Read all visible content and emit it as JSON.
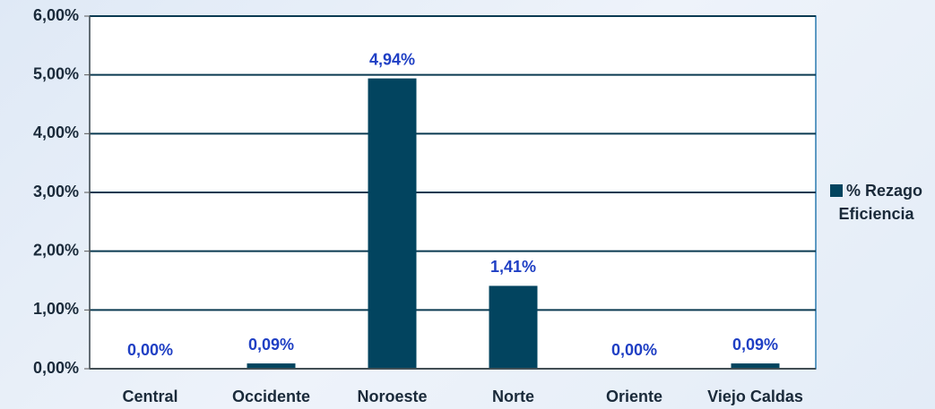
{
  "chart_data": {
    "type": "bar",
    "categories": [
      "Central",
      "Occidente",
      "Noroeste",
      "Norte",
      "Oriente",
      "Viejo Caldas"
    ],
    "series": [
      {
        "name": "% Rezago Eficiencia",
        "color": "#02445f",
        "values": [
          0,
          0.09,
          4.94,
          1.41,
          0,
          0.09
        ],
        "value_labels": [
          "0,00%",
          "0,09%",
          "4,94%",
          "1,41%",
          "0,00%",
          "0,09%"
        ]
      }
    ],
    "ylim": [
      0,
      6
    ],
    "yticks": [
      {
        "value": 0,
        "label": "0,00%"
      },
      {
        "value": 1,
        "label": "1,00%"
      },
      {
        "value": 2,
        "label": "2,00%"
      },
      {
        "value": 3,
        "label": "3,00%"
      },
      {
        "value": 4,
        "label": "4,00%"
      },
      {
        "value": 5,
        "label": "5,00%"
      },
      {
        "value": 6,
        "label": "6,00%"
      }
    ],
    "grid": true,
    "legend": "right"
  }
}
